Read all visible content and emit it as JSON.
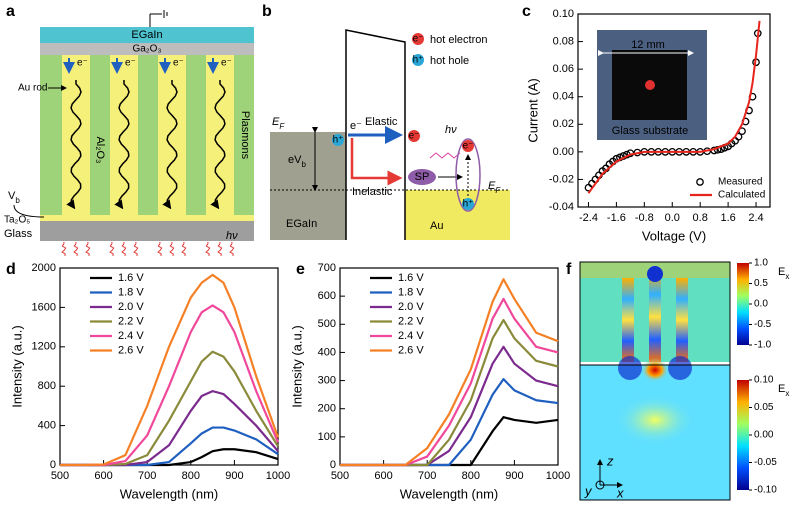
{
  "panel_labels": [
    "a",
    "b",
    "c",
    "d",
    "e",
    "f"
  ],
  "panel_a": {
    "top": "EGaIn",
    "oxide": "Ga₂O₃",
    "electrons": [
      "e⁻",
      "e⁻",
      "e⁻",
      "e⁻"
    ],
    "rod": "Au rod",
    "dielectric": "Al₂O₃",
    "plasmons": "Plasmons",
    "bias": {
      "main": "V",
      "sub": "b"
    },
    "spacer": "Ta₂O₅",
    "substrate": "Glass",
    "photon": "hν"
  },
  "panel_b": {
    "legend": [
      "hot electron",
      "hot hole"
    ],
    "legend_symbols": [
      "e⁻",
      "h⁺"
    ],
    "fermi_left": {
      "main": "E",
      "sub": "F"
    },
    "tunneling_electron": "e⁻",
    "elastic": "Elastic",
    "hole": "h⁺",
    "bias": {
      "main": "eV",
      "sub": "b"
    },
    "photon": "hν",
    "inelastic": "Inelastic",
    "plasmon": "SP",
    "fermi_right": {
      "main": "E",
      "sub": "F"
    },
    "left_metal": "EGaIn",
    "right_metal": "Au",
    "elastic_electron": "e⁻",
    "excited_electron": "e⁻",
    "excited_hole": "h⁺"
  },
  "panel_f": {
    "colorbars": [
      {
        "label": {
          "main": "E",
          "sub": "x"
        },
        "lim": [
          -1,
          1
        ],
        "ticks": [
          {
            "value": 1,
            "label": "1.0"
          },
          0.5,
          {
            "value": 0,
            "label": "0.0"
          },
          -0.5,
          {
            "value": -1,
            "label": "-1.0"
          }
        ]
      },
      {
        "label": {
          "main": "E",
          "sub": "x"
        },
        "lim": [
          -0.1,
          0.1
        ],
        "ticks": [
          {
            "value": 0.1,
            "label": "0.10"
          },
          0.05,
          {
            "value": 0,
            "label": "0.00"
          },
          -0.05,
          {
            "value": -0.1,
            "label": "-0.10"
          }
        ]
      }
    ],
    "axes": [
      "z",
      "y",
      "x"
    ]
  },
  "chart_data": [
    {
      "type": "scatter",
      "xlabel": "Voltage (V)",
      "ylabel": "Current (A)",
      "xlim": [
        -2.7,
        2.8
      ],
      "xticks": [
        -2.4,
        -1.6,
        -0.8,
        {
          "value": 0,
          "label": "0.0"
        },
        0.8,
        1.6,
        2.4
      ],
      "ylim": [
        -0.04,
        0.1
      ],
      "yticks": [
        -0.04,
        -0.02,
        {
          "value": 0,
          "label": "0.00"
        },
        0.02,
        0.04,
        0.06,
        0.08,
        {
          "value": 0.1,
          "label": "0.10"
        }
      ],
      "legend": "lower right",
      "annotations": [
        "12 mm",
        "Glass substrate"
      ],
      "series": [
        {
          "name": "Measured",
          "kind": "markers",
          "color": "#000000",
          "x": [
            -2.4,
            -2.3,
            -2.2,
            -2.1,
            -2.0,
            -1.9,
            -1.8,
            -1.7,
            -1.6,
            -1.5,
            -1.4,
            -1.3,
            -1.2,
            -1.0,
            -0.8,
            -0.6,
            -0.4,
            -0.2,
            0,
            0.2,
            0.4,
            0.6,
            0.8,
            1.0,
            1.2,
            1.3,
            1.4,
            1.5,
            1.6,
            1.7,
            1.8,
            1.9,
            2.0,
            2.1,
            2.2,
            2.3,
            2.4,
            2.45
          ],
          "values": [
            -0.026,
            -0.023,
            -0.02,
            -0.017,
            -0.014,
            -0.012,
            -0.009,
            -0.007,
            -0.005,
            -0.004,
            -0.003,
            -0.002,
            -0.001,
            -0.0005,
            0,
            0,
            0,
            0,
            0,
            0,
            0,
            0,
            0,
            0.0005,
            0.001,
            0.0015,
            0.002,
            0.003,
            0.004,
            0.006,
            0.008,
            0.011,
            0.015,
            0.022,
            0.03,
            0.04,
            0.065,
            0.086
          ]
        },
        {
          "name": "Calculated",
          "kind": "line",
          "color": "#e8251d",
          "x": [
            -2.4,
            -2.0,
            -1.6,
            -1.2,
            -0.8,
            0,
            0.8,
            1.2,
            1.6,
            1.8,
            2.0,
            2.2,
            2.3,
            2.4,
            2.5
          ],
          "values": [
            -0.03,
            -0.016,
            -0.007,
            -0.002,
            0,
            0,
            0,
            0.002,
            0.006,
            0.011,
            0.02,
            0.036,
            0.05,
            0.07,
            0.095
          ]
        }
      ]
    },
    {
      "type": "line",
      "xlabel": "Wavelength (nm)",
      "ylabel": "Intensity (a.u.)",
      "xlim": [
        500,
        1000
      ],
      "xticks": [
        500,
        600,
        700,
        800,
        900,
        1000
      ],
      "ylim": [
        0,
        2000
      ],
      "yticks": [
        0,
        400,
        800,
        1200,
        1600,
        2000
      ],
      "legend": "upper left",
      "x": [
        500,
        550,
        600,
        650,
        700,
        750,
        800,
        825,
        850,
        875,
        900,
        950,
        1000
      ],
      "series": [
        {
          "name": "1.6 V",
          "color": "#000000",
          "values": [
            0,
            0,
            0,
            0,
            0,
            0,
            30,
            80,
            140,
            160,
            160,
            130,
            60
          ]
        },
        {
          "name": "1.8 V",
          "color": "#1f5fbf",
          "values": [
            0,
            0,
            0,
            0,
            0,
            30,
            220,
            320,
            380,
            380,
            350,
            260,
            110
          ]
        },
        {
          "name": "2.0 V",
          "color": "#7b2a8e",
          "values": [
            0,
            0,
            0,
            0,
            30,
            200,
            550,
            700,
            750,
            720,
            620,
            400,
            140
          ]
        },
        {
          "name": "2.2 V",
          "color": "#8a8a3a",
          "values": [
            0,
            0,
            0,
            10,
            100,
            450,
            850,
            1050,
            1150,
            1100,
            950,
            550,
            190
          ]
        },
        {
          "name": "2.4 V",
          "color": "#f0489a",
          "values": [
            0,
            0,
            0,
            40,
            300,
            800,
            1350,
            1550,
            1620,
            1550,
            1350,
            750,
            230
          ]
        },
        {
          "name": "2.6 V",
          "color": "#f58025",
          "values": [
            0,
            0,
            5,
            100,
            600,
            1200,
            1700,
            1850,
            1930,
            1850,
            1600,
            900,
            280
          ]
        }
      ]
    },
    {
      "type": "line",
      "xlabel": "Wavelength (nm)",
      "ylabel": "Intensity (a.u.)",
      "xlim": [
        500,
        1000
      ],
      "xticks": [
        500,
        600,
        700,
        800,
        900,
        1000
      ],
      "ylim": [
        0,
        700
      ],
      "yticks": [
        0,
        100,
        200,
        300,
        400,
        500,
        600,
        700
      ],
      "legend": "upper left",
      "x": [
        500,
        650,
        700,
        750,
        800,
        850,
        875,
        900,
        950,
        1000
      ],
      "series": [
        {
          "name": "1.6 V",
          "color": "#000000",
          "values": [
            0,
            0,
            0,
            0,
            0,
            120,
            170,
            160,
            150,
            160
          ]
        },
        {
          "name": "1.8 V",
          "color": "#1f5fbf",
          "values": [
            0,
            0,
            0,
            0,
            90,
            250,
            305,
            265,
            230,
            220
          ]
        },
        {
          "name": "2.0 V",
          "color": "#7b2a8e",
          "values": [
            0,
            0,
            0,
            50,
            170,
            360,
            420,
            360,
            300,
            280
          ]
        },
        {
          "name": "2.2 V",
          "color": "#8a8a3a",
          "values": [
            0,
            0,
            0,
            90,
            230,
            450,
            515,
            450,
            370,
            350
          ]
        },
        {
          "name": "2.4 V",
          "color": "#f0489a",
          "values": [
            0,
            0,
            30,
            140,
            290,
            520,
            590,
            520,
            420,
            400
          ]
        },
        {
          "name": "2.6 V",
          "color": "#f58025",
          "values": [
            0,
            0,
            60,
            180,
            340,
            580,
            660,
            590,
            470,
            440
          ]
        }
      ]
    }
  ]
}
